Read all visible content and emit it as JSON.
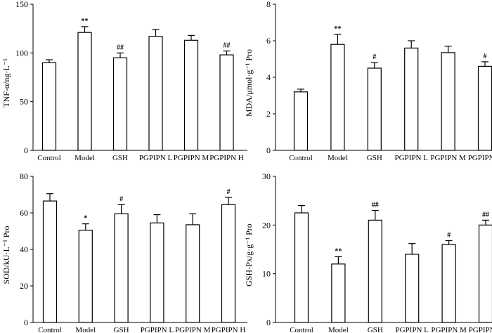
{
  "chart_data": [
    {
      "type": "bar",
      "ylabel": "TNF-α/ng·L⁻¹",
      "ylim": [
        0,
        150
      ],
      "yticks": [
        0,
        50,
        100,
        150
      ],
      "categories": [
        "Control",
        "Model",
        "GSH",
        "PGPIPN L",
        "PGPIPN M",
        "PGPIPN H"
      ],
      "values": [
        90,
        121,
        95,
        117,
        113,
        98
      ],
      "errors": [
        3,
        6,
        5,
        7,
        5,
        4
      ],
      "significance": [
        "",
        "**",
        "##",
        "",
        "",
        "##"
      ]
    },
    {
      "type": "bar",
      "ylabel": "MDA/μmol·g⁻¹ Pro",
      "ylim": [
        0,
        8
      ],
      "yticks": [
        0,
        2,
        4,
        6,
        8
      ],
      "categories": [
        "Control",
        "Model",
        "GSH",
        "PGPIPN L",
        "PGPIPN M",
        "PGPIPN H"
      ],
      "values": [
        3.2,
        5.8,
        4.5,
        5.6,
        5.35,
        4.6
      ],
      "errors": [
        0.15,
        0.55,
        0.3,
        0.4,
        0.35,
        0.25
      ],
      "significance": [
        "",
        "**",
        "#",
        "",
        "",
        "#"
      ]
    },
    {
      "type": "bar",
      "ylabel": "SOD/kU·L⁻¹ Pro",
      "ylim": [
        0,
        80
      ],
      "yticks": [
        0,
        20,
        40,
        60,
        80
      ],
      "categories": [
        "Control",
        "Model",
        "GSH",
        "PGPIPN L",
        "PGPIPN M",
        "PGPIPN H"
      ],
      "values": [
        66.5,
        50.5,
        59.5,
        54.5,
        53.5,
        64.5
      ],
      "errors": [
        4,
        3.5,
        5,
        4.5,
        6,
        4
      ],
      "significance": [
        "",
        "*",
        "#",
        "",
        "",
        "#"
      ]
    },
    {
      "type": "bar",
      "ylabel": "GSH-Px/g·g⁻¹ Pro",
      "ylim": [
        0,
        30
      ],
      "yticks": [
        0,
        10,
        20,
        30
      ],
      "categories": [
        "Control",
        "Model",
        "GSH",
        "PGPIPN L",
        "PGPIPN M",
        "PGPIPN H"
      ],
      "values": [
        22.5,
        12,
        21,
        14,
        16,
        20
      ],
      "errors": [
        1.5,
        1.5,
        2,
        2.2,
        0.8,
        1
      ],
      "significance": [
        "",
        "**",
        "##",
        "",
        "#",
        "##"
      ]
    }
  ]
}
